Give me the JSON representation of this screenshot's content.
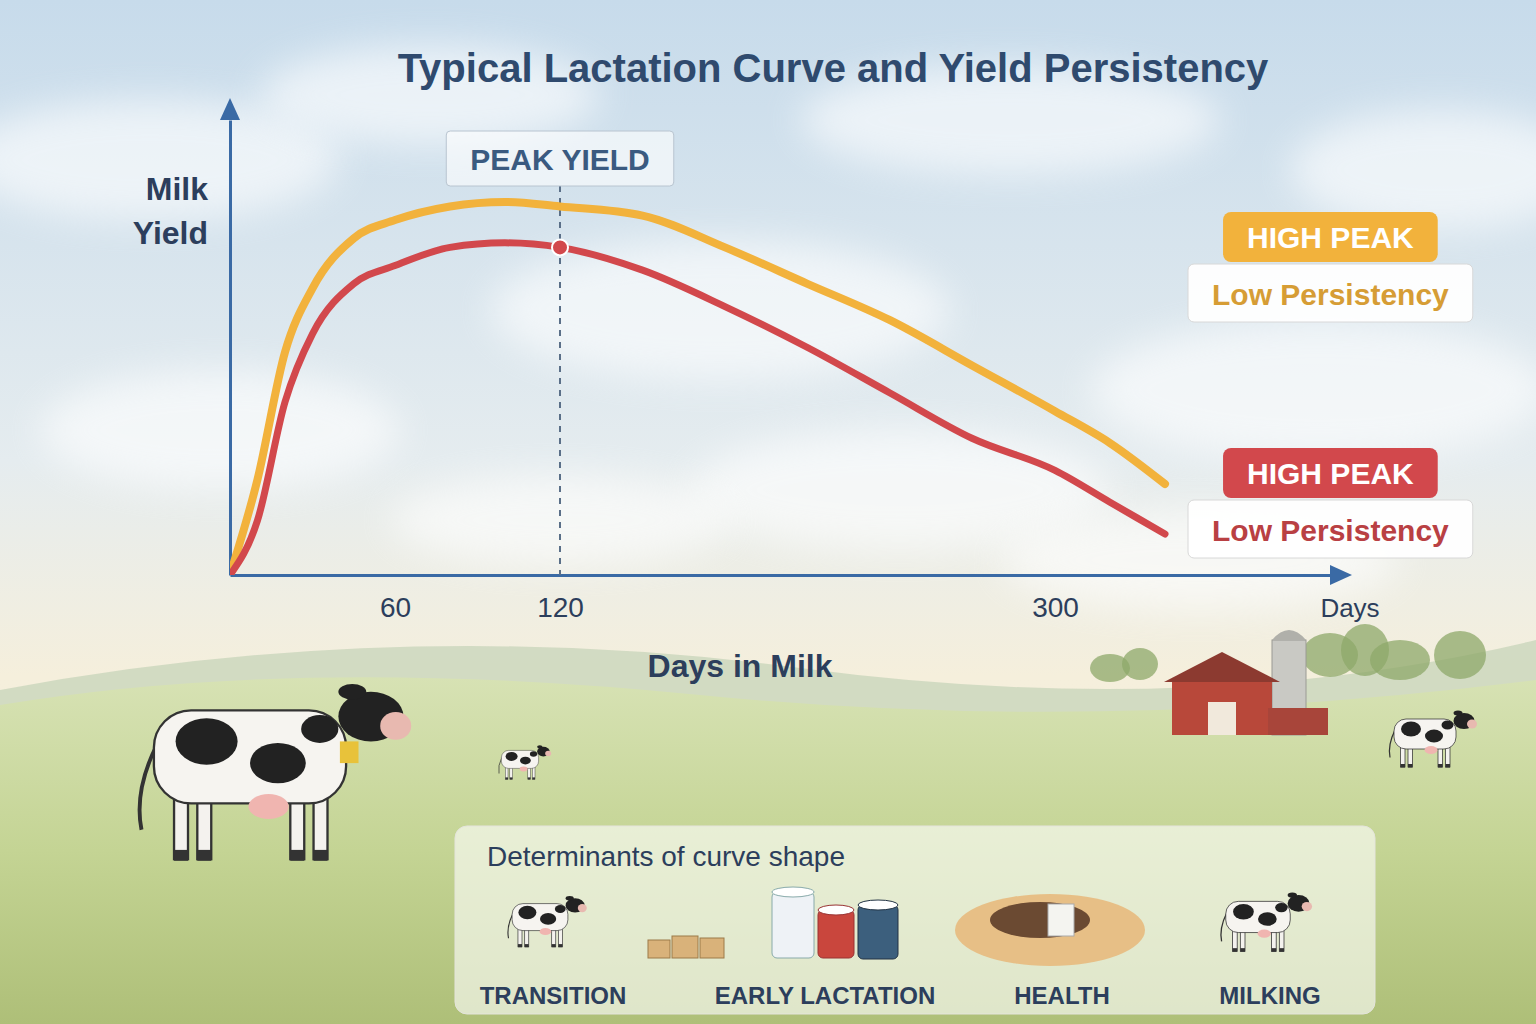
{
  "chart_data": {
    "type": "line",
    "title": "Typical Lactation Curve and Yield Persistency",
    "x_label": "Days in Milk",
    "y_label": "Milk Yield",
    "x_end_label": "Days",
    "x": [
      0,
      10,
      20,
      30,
      45,
      60,
      80,
      100,
      120,
      150,
      180,
      210,
      240,
      270,
      300,
      320,
      340
    ],
    "series": [
      {
        "name": "HIGH PEAK",
        "persistency": "Low Persistency",
        "color": "#f2b23c",
        "values": [
          0,
          21,
          49,
          63,
          74,
          78,
          81,
          82,
          81,
          79,
          72,
          64,
          56,
          46,
          36,
          29,
          20
        ]
      },
      {
        "name": "HIGH PEAK",
        "persistency": "Low Persistency",
        "color": "#d2484c",
        "values": [
          0,
          12,
          38,
          53,
          64,
          68,
          72,
          73,
          72,
          67,
          59,
          50,
          40,
          30,
          23,
          16,
          9
        ]
      }
    ],
    "xlim": [
      0,
      400
    ],
    "xticks": [
      60,
      120,
      300
    ],
    "ylim": [
      0,
      100
    ],
    "tick_labels": "x",
    "legend": "right",
    "annotations": [
      {
        "text": "PEAK YIELD",
        "x": 120
      }
    ]
  },
  "determinants": {
    "title": "Determinants of curve shape",
    "items": [
      "TRANSITION",
      "EARLY LACTATION",
      "HEALTH",
      "MILKING"
    ]
  }
}
